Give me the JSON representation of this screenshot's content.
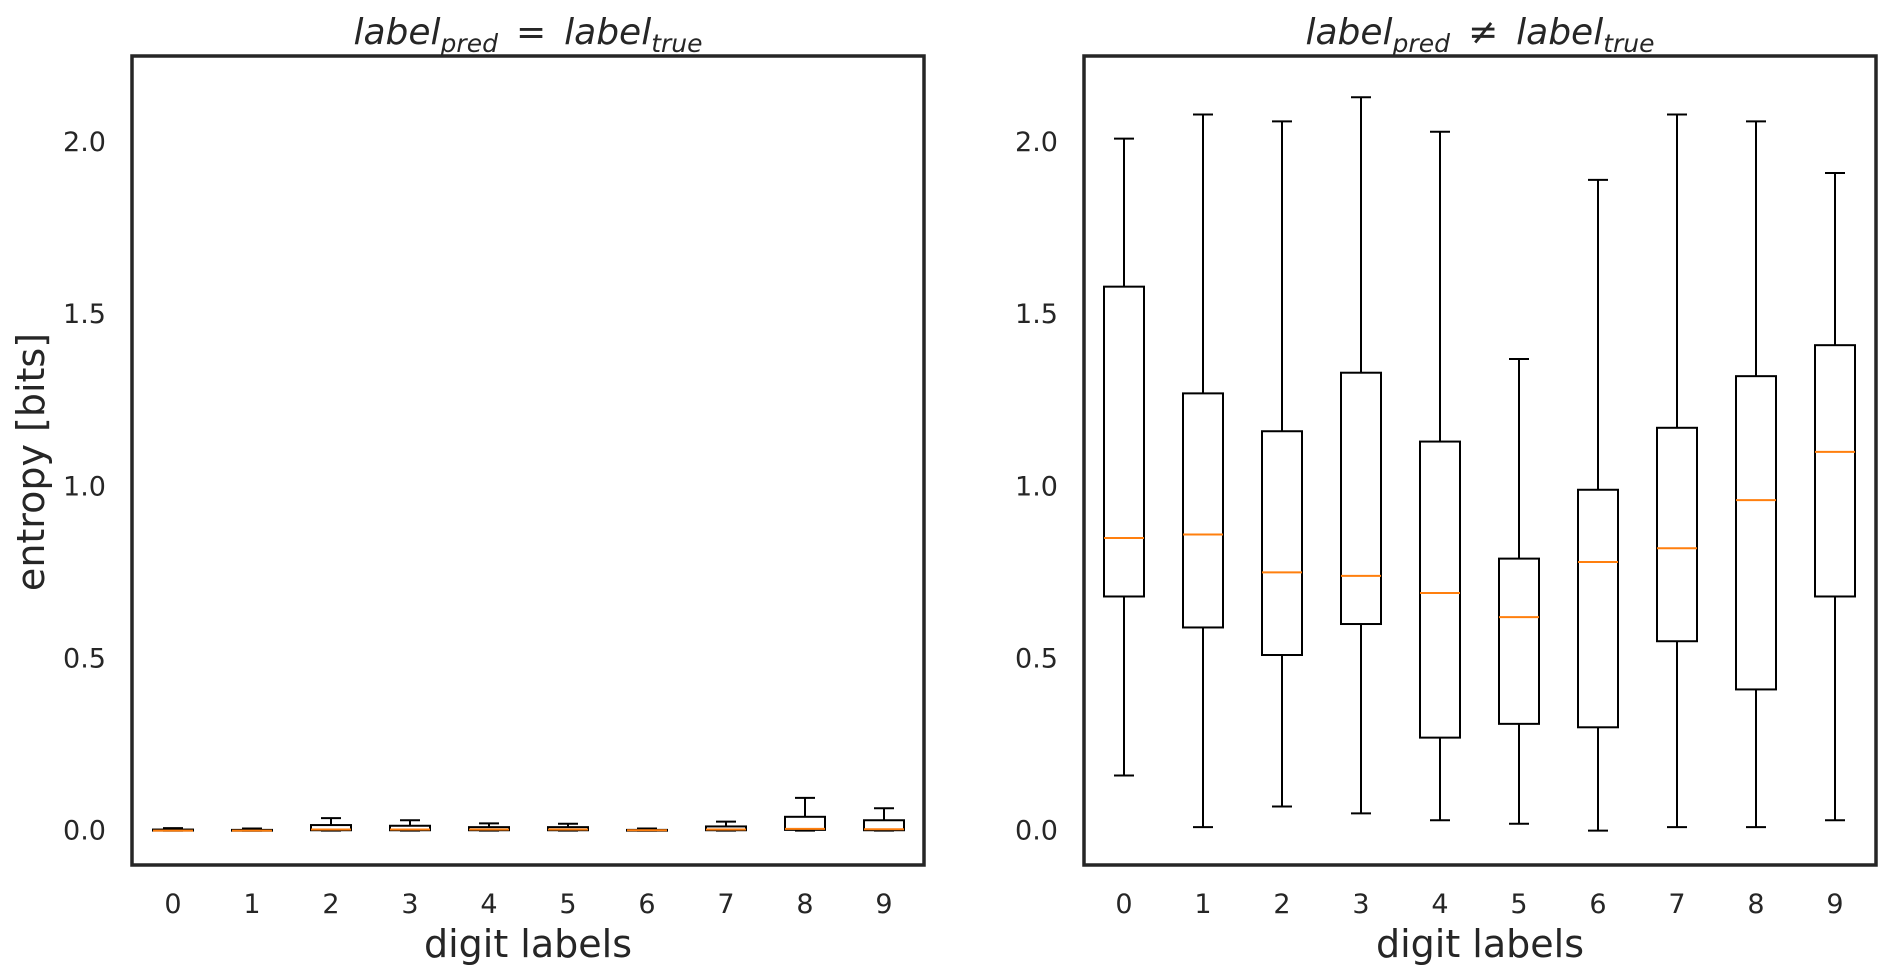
{
  "chart_data": [
    {
      "type": "box",
      "title": {
        "base1": "label",
        "sub1": "pred",
        "op": "=",
        "base2": "label",
        "sub2": "true"
      },
      "xlabel": "digit labels",
      "ylabel": "entropy [bits]",
      "ylim": [
        -0.1,
        2.25
      ],
      "yticks": [
        "0.0",
        "0.5",
        "1.0",
        "1.5",
        "2.0"
      ],
      "categories": [
        "0",
        "1",
        "2",
        "3",
        "4",
        "5",
        "6",
        "7",
        "8",
        "9"
      ],
      "boxes": [
        {
          "whislo": 0.0,
          "q1": 0.0,
          "med": 0.0,
          "q3": 0.003,
          "whishi": 0.007
        },
        {
          "whislo": 0.0,
          "q1": 0.0,
          "med": 0.0,
          "q3": 0.002,
          "whishi": 0.006
        },
        {
          "whislo": 0.0,
          "q1": 0.001,
          "med": 0.003,
          "q3": 0.016,
          "whishi": 0.036
        },
        {
          "whislo": 0.0,
          "q1": 0.001,
          "med": 0.003,
          "q3": 0.014,
          "whishi": 0.03
        },
        {
          "whislo": 0.0,
          "q1": 0.001,
          "med": 0.003,
          "q3": 0.01,
          "whishi": 0.021
        },
        {
          "whislo": 0.0,
          "q1": 0.001,
          "med": 0.003,
          "q3": 0.01,
          "whishi": 0.02
        },
        {
          "whislo": 0.0,
          "q1": 0.0,
          "med": 0.001,
          "q3": 0.002,
          "whishi": 0.006
        },
        {
          "whislo": 0.0,
          "q1": 0.001,
          "med": 0.003,
          "q3": 0.012,
          "whishi": 0.026
        },
        {
          "whislo": 0.0,
          "q1": 0.002,
          "med": 0.005,
          "q3": 0.04,
          "whishi": 0.095
        },
        {
          "whislo": 0.0,
          "q1": 0.001,
          "med": 0.004,
          "q3": 0.03,
          "whishi": 0.065
        }
      ]
    },
    {
      "type": "box",
      "title": {
        "base1": "label",
        "sub1": "pred",
        "op": "≠",
        "base2": "label",
        "sub2": "true"
      },
      "xlabel": "digit labels",
      "ylabel": "",
      "ylim": [
        -0.1,
        2.25
      ],
      "yticks": [
        "0.0",
        "0.5",
        "1.0",
        "1.5",
        "2.0"
      ],
      "categories": [
        "0",
        "1",
        "2",
        "3",
        "4",
        "5",
        "6",
        "7",
        "8",
        "9"
      ],
      "boxes": [
        {
          "whislo": 0.16,
          "q1": 0.68,
          "med": 0.85,
          "q3": 1.58,
          "whishi": 2.01
        },
        {
          "whislo": 0.01,
          "q1": 0.59,
          "med": 0.86,
          "q3": 1.27,
          "whishi": 2.08
        },
        {
          "whislo": 0.07,
          "q1": 0.51,
          "med": 0.75,
          "q3": 1.16,
          "whishi": 2.06
        },
        {
          "whislo": 0.05,
          "q1": 0.6,
          "med": 0.74,
          "q3": 1.33,
          "whishi": 2.13
        },
        {
          "whislo": 0.03,
          "q1": 0.27,
          "med": 0.69,
          "q3": 1.13,
          "whishi": 2.03
        },
        {
          "whislo": 0.02,
          "q1": 0.31,
          "med": 0.62,
          "q3": 0.79,
          "whishi": 1.37
        },
        {
          "whislo": 0.0,
          "q1": 0.3,
          "med": 0.78,
          "q3": 0.99,
          "whishi": 1.89
        },
        {
          "whislo": 0.01,
          "q1": 0.55,
          "med": 0.82,
          "q3": 1.17,
          "whishi": 2.08
        },
        {
          "whislo": 0.01,
          "q1": 0.41,
          "med": 0.96,
          "q3": 1.32,
          "whishi": 2.06
        },
        {
          "whislo": 0.03,
          "q1": 0.68,
          "med": 1.1,
          "q3": 1.41,
          "whishi": 1.91
        }
      ]
    }
  ],
  "colors": {
    "axes": "#262626",
    "box": "#000000",
    "median": "#ff7f0e",
    "background": "#ffffff"
  }
}
